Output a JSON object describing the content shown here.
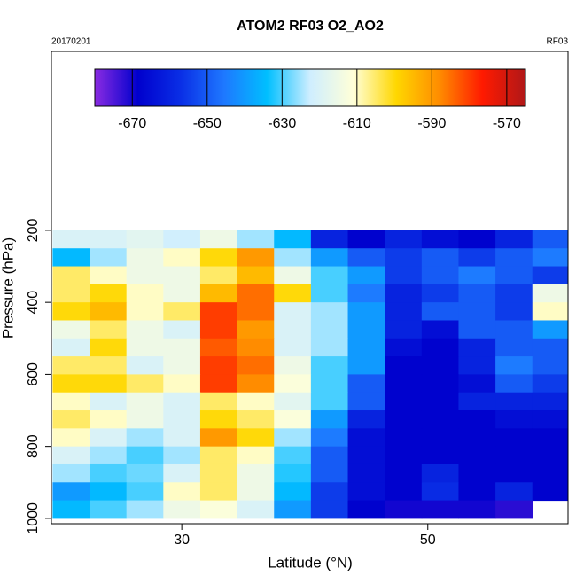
{
  "chart_data": {
    "type": "heatmap",
    "title": "ATOM2 RF03 O2_AO2",
    "subtitle_left": "20170201",
    "subtitle_right": "RF03",
    "x_label": "Latitude (°N)",
    "y_label": "Pressure (hPa)",
    "xlim": [
      19.4,
      61.4
    ],
    "xticks": [
      30,
      50
    ],
    "ylim": [
      1015,
      -297
    ],
    "yticks": [
      200,
      400,
      600,
      800,
      1000
    ],
    "x_edges": [
      19.5,
      22.5,
      25.5,
      28.5,
      31.5,
      34.5,
      37.5,
      40.5,
      43.5,
      46.5,
      49.5,
      52.5,
      55.5,
      58.5,
      61.5
    ],
    "y_edges": [
      200,
      250,
      300,
      350,
      400,
      450,
      500,
      550,
      600,
      650,
      700,
      750,
      800,
      850,
      900,
      950,
      1000
    ],
    "values": [
      [
        -620,
        -620,
        -618,
        -622,
        -615,
        -625,
        -635,
        -660,
        -668,
        -660,
        -665,
        -668,
        -660,
        -650
      ],
      [
        -635,
        -625,
        -615,
        -610,
        -600,
        -590,
        -625,
        -640,
        -650,
        -655,
        -650,
        -655,
        -650,
        -645
      ],
      [
        -605,
        -610,
        -615,
        -615,
        -605,
        -595,
        -615,
        -630,
        -640,
        -655,
        -650,
        -645,
        -650,
        -655
      ],
      [
        -605,
        -600,
        -610,
        -615,
        -595,
        -585,
        -600,
        -630,
        -645,
        -660,
        -655,
        -650,
        -655,
        -615
      ],
      [
        -600,
        -595,
        -610,
        -605,
        -580,
        -585,
        -620,
        -625,
        -640,
        -660,
        -650,
        -650,
        -655,
        -610
      ],
      [
        -615,
        -605,
        -615,
        -620,
        -580,
        -590,
        -620,
        -625,
        -640,
        -660,
        -665,
        -650,
        -650,
        -640
      ],
      [
        -620,
        -600,
        -615,
        -615,
        -583,
        -588,
        -620,
        -625,
        -640,
        -665,
        -668,
        -660,
        -650,
        -650
      ],
      [
        -605,
        -605,
        -620,
        -615,
        -580,
        -585,
        -615,
        -630,
        -640,
        -668,
        -668,
        -660,
        -645,
        -650
      ],
      [
        -600,
        -600,
        -605,
        -610,
        -580,
        -588,
        -612,
        -630,
        -650,
        -668,
        -668,
        -665,
        -650,
        -655
      ],
      [
        -610,
        -620,
        -615,
        -620,
        -605,
        -610,
        -618,
        -630,
        -650,
        -668,
        -668,
        -660,
        -660,
        -660
      ],
      [
        -605,
        -610,
        -615,
        -620,
        -600,
        -605,
        -612,
        -640,
        -660,
        -668,
        -668,
        -668,
        -665,
        -665
      ],
      [
        -610,
        -620,
        -625,
        -620,
        -590,
        -600,
        -625,
        -645,
        -665,
        -668,
        -668,
        -668,
        -668,
        -668
      ],
      [
        -620,
        -625,
        -630,
        -625,
        -605,
        -610,
        -630,
        -650,
        -665,
        -668,
        -668,
        -668,
        -668,
        -668
      ],
      [
        -625,
        -630,
        -628,
        -620,
        -605,
        -615,
        -632,
        -650,
        -665,
        -668,
        -660,
        -668,
        -668,
        -668
      ],
      [
        -640,
        -635,
        -630,
        -610,
        -605,
        -615,
        -635,
        -655,
        -665,
        -668,
        -658,
        -668,
        -660,
        -668
      ],
      [
        -635,
        -630,
        -625,
        -615,
        -612,
        -620,
        -640,
        -655,
        -668,
        -670,
        -670,
        -670,
        -672,
        null
      ]
    ],
    "colorbar": {
      "lim": [
        -680,
        -565
      ],
      "ticks": [
        -670,
        -650,
        -630,
        -610,
        -590,
        -570
      ],
      "colors": [
        "#8a2be2",
        "#0000cd",
        "#0a2fe6",
        "#1e78ff",
        "#00bfff",
        "#cfeeff",
        "#ffffd8",
        "#ffd700",
        "#ff8c00",
        "#ff1a00",
        "#b01818"
      ]
    }
  }
}
